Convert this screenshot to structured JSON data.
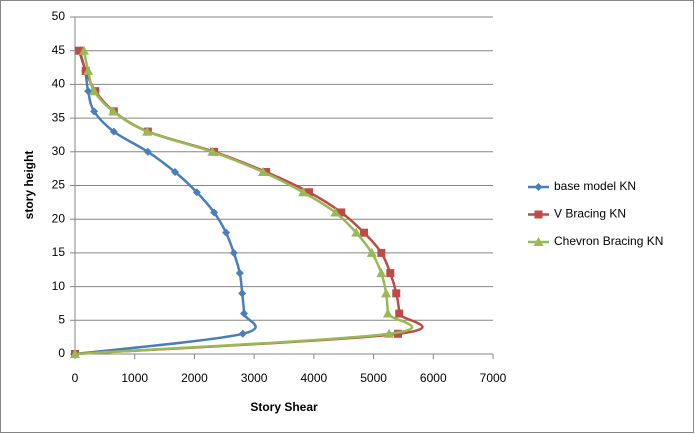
{
  "chart_data": {
    "type": "scatter",
    "smooth": true,
    "xlabel": "Story Shear",
    "ylabel": "story height",
    "xlim": [
      0,
      7000
    ],
    "xticks": [
      0,
      1000,
      2000,
      3000,
      4000,
      5000,
      6000,
      7000
    ],
    "ylim": [
      0,
      50
    ],
    "yticks": [
      0,
      5,
      10,
      15,
      20,
      25,
      30,
      35,
      40,
      45,
      50
    ],
    "grid": true,
    "legend": "right",
    "series": [
      {
        "name": "base model KN",
        "color": "#4a7ebb",
        "marker": "diamond",
        "x": [
          0,
          2810,
          2830,
          2800,
          2760,
          2660,
          2530,
          2330,
          2040,
          1675,
          1220,
          650,
          320,
          220,
          170,
          80
        ],
        "y": [
          0,
          3,
          6,
          9,
          12,
          15,
          18,
          21,
          24,
          27,
          30,
          33,
          36,
          39,
          42,
          45
        ]
      },
      {
        "name": "V Bracing KN",
        "color": "#be4b48",
        "marker": "square",
        "x": [
          0,
          5410,
          5430,
          5380,
          5280,
          5130,
          4840,
          4460,
          3920,
          3200,
          2330,
          1220,
          650,
          340,
          180,
          70
        ],
        "y": [
          0,
          3,
          6,
          9,
          12,
          15,
          18,
          21,
          24,
          27,
          30,
          33,
          36,
          39,
          42,
          45
        ]
      },
      {
        "name": "Chevron Bracing KN",
        "color": "#98b954",
        "marker": "triangle",
        "x": [
          0,
          5260,
          5240,
          5210,
          5130,
          4970,
          4710,
          4360,
          3820,
          3150,
          2300,
          1210,
          640,
          320,
          220,
          150
        ],
        "y": [
          0,
          3,
          6,
          9,
          12,
          15,
          18,
          21,
          24,
          27,
          30,
          33,
          36,
          39,
          42,
          45
        ]
      }
    ]
  }
}
